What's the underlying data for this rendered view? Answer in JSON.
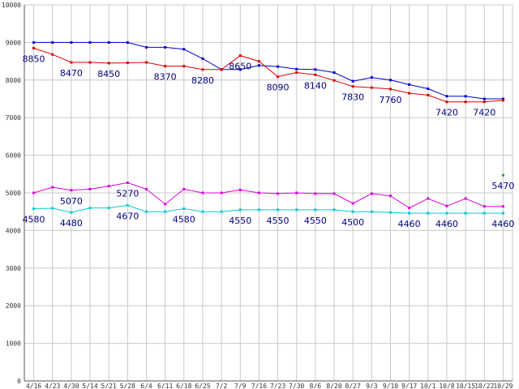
{
  "chart_data": {
    "type": "line",
    "categories": [
      "4/16",
      "4/23",
      "4/30",
      "5/14",
      "5/21",
      "5/28",
      "6/4",
      "6/11",
      "6/18",
      "6/25",
      "7/2",
      "7/9",
      "7/16",
      "7/23",
      "7/30",
      "8/6",
      "8/20",
      "8/27",
      "9/3",
      "9/10",
      "9/17",
      "10/1",
      "10/8",
      "10/15",
      "10/22",
      "10/29"
    ],
    "ylim": [
      0,
      10000
    ],
    "yticks": [
      0,
      1000,
      2000,
      3000,
      4000,
      5000,
      6000,
      7000,
      8000,
      9000,
      10000
    ],
    "grid": true,
    "series": [
      {
        "color": "#0000cc",
        "values": [
          9000,
          9000,
          9000,
          9000,
          9000,
          9000,
          8870,
          8870,
          8820,
          8570,
          8280,
          8280,
          8390,
          8360,
          8290,
          8280,
          8200,
          7970,
          8070,
          8000,
          7880,
          7770,
          7570,
          7570,
          7500,
          7500
        ]
      },
      {
        "color": "#dd0000",
        "values": [
          8850,
          8680,
          8470,
          8470,
          8450,
          8460,
          8470,
          8370,
          8370,
          8280,
          8280,
          8650,
          8500,
          8090,
          8200,
          8140,
          7990,
          7830,
          7800,
          7760,
          7650,
          7600,
          7420,
          7420,
          7420,
          7460
        ]
      },
      {
        "color": "#dd00dd",
        "values": [
          5000,
          5150,
          5070,
          5100,
          5180,
          5270,
          5100,
          4700,
          5100,
          5000,
          5000,
          5080,
          5000,
          4980,
          5000,
          4980,
          4980,
          4720,
          4980,
          4920,
          4600,
          4850,
          4650,
          4850,
          4640,
          4640
        ]
      },
      {
        "color": "#00cccc",
        "values": [
          4580,
          4590,
          4480,
          4600,
          4600,
          4670,
          4500,
          4500,
          4580,
          4500,
          4500,
          4550,
          4550,
          4550,
          4550,
          4550,
          4550,
          4500,
          4500,
          4480,
          4460,
          4460,
          4460,
          4460,
          4460,
          4460
        ]
      },
      {
        "color": "#22aa22",
        "points": [
          {
            "x": "10/29",
            "y": 5470
          }
        ]
      }
    ],
    "data_labels": [
      {
        "series": 1,
        "x": "4/16",
        "text": "8850"
      },
      {
        "series": 1,
        "x": "4/30",
        "text": "8470"
      },
      {
        "series": 1,
        "x": "5/21",
        "text": "8450"
      },
      {
        "series": 1,
        "x": "6/11",
        "text": "8370"
      },
      {
        "series": 1,
        "x": "6/25",
        "text": "8280"
      },
      {
        "series": 1,
        "x": "7/9",
        "text": "8650"
      },
      {
        "series": 1,
        "x": "7/23",
        "text": "8090"
      },
      {
        "series": 1,
        "x": "8/6",
        "text": "8140"
      },
      {
        "series": 1,
        "x": "8/27",
        "text": "7830"
      },
      {
        "series": 1,
        "x": "9/10",
        "text": "7760"
      },
      {
        "series": 1,
        "x": "10/8",
        "text": "7420"
      },
      {
        "series": 1,
        "x": "10/22",
        "text": "7420"
      },
      {
        "series": 2,
        "x": "4/30",
        "text": "5070"
      },
      {
        "series": 2,
        "x": "5/28",
        "text": "5270"
      },
      {
        "series": 4,
        "x": "10/29",
        "text": "5470"
      },
      {
        "series": 3,
        "x": "4/16",
        "text": "4580"
      },
      {
        "series": 3,
        "x": "4/30",
        "text": "4480"
      },
      {
        "series": 3,
        "x": "5/28",
        "text": "4670"
      },
      {
        "series": 3,
        "x": "6/18",
        "text": "4580"
      },
      {
        "series": 3,
        "x": "7/9",
        "text": "4550"
      },
      {
        "series": 3,
        "x": "7/23",
        "text": "4550"
      },
      {
        "series": 3,
        "x": "8/6",
        "text": "4550"
      },
      {
        "series": 3,
        "x": "8/27",
        "text": "4500"
      },
      {
        "series": 3,
        "x": "9/17",
        "text": "4460"
      },
      {
        "series": 3,
        "x": "10/8",
        "text": "4460"
      },
      {
        "series": 3,
        "x": "10/29",
        "text": "4460"
      }
    ]
  }
}
